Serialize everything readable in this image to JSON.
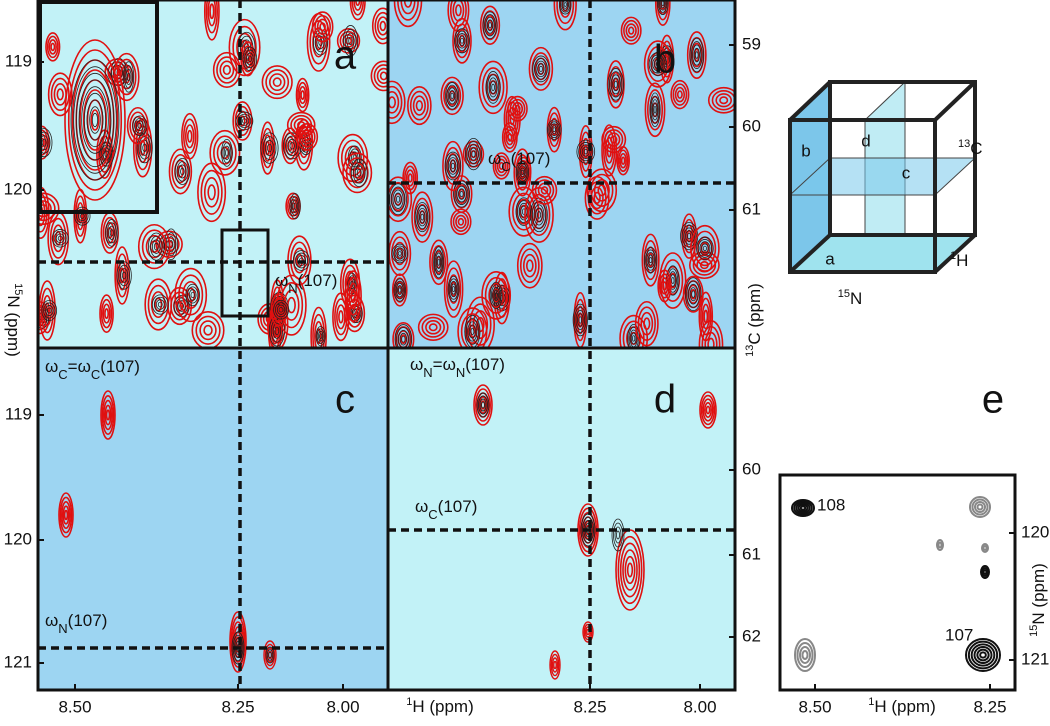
{
  "left_axis": {
    "label_sup": "15",
    "label": "N (ppm)",
    "top_ticks": [
      "119",
      "120"
    ],
    "bottom_ticks": [
      "119",
      "120",
      "121"
    ]
  },
  "right_axis": {
    "label_sup": "13",
    "label": "C (ppm)",
    "top_ticks": [
      "59",
      "60",
      "61"
    ],
    "bottom_ticks": [
      "60",
      "61",
      "62"
    ]
  },
  "x_axis": {
    "label_sup": "1",
    "label": "H (ppm)",
    "left_ticks": [
      "8.50",
      "8.25",
      "8.00"
    ],
    "right_ticks": [
      "8.25",
      "8.00"
    ]
  },
  "panels": [
    {
      "label": "a"
    },
    {
      "label": "b"
    },
    {
      "label": "c"
    },
    {
      "label": "d"
    },
    {
      "label": "e"
    }
  ],
  "annotations": [
    {
      "parts": [
        "ω",
        "N",
        "(107)"
      ]
    },
    {
      "parts": [
        "ω",
        "C",
        "(107)"
      ]
    },
    {
      "parts": [
        "ω",
        "C",
        "=ω",
        "C",
        "(107)"
      ]
    },
    {
      "parts": [
        "ω",
        "N",
        "(107)"
      ]
    },
    {
      "parts": [
        "ω",
        "N",
        "=ω",
        "N",
        "(107)"
      ]
    },
    {
      "parts": [
        "ω",
        "C",
        "(107)"
      ]
    }
  ],
  "cube": {
    "face_labels": [
      "b",
      "d",
      "c",
      "a"
    ],
    "axes": [
      {
        "sup": "13",
        "text": "C"
      },
      {
        "sup": "1",
        "text": "H"
      },
      {
        "sup": "15",
        "text": "N"
      }
    ]
  },
  "inset_e": {
    "peaks": [
      "108",
      "107"
    ],
    "y_ticks": [
      "120",
      "121"
    ],
    "x_ticks": [
      "8.50",
      "8.25"
    ],
    "x_label_sup": "1",
    "x_label": "H (ppm)",
    "y_label_sup": "15",
    "y_label": "N (ppm)"
  }
}
